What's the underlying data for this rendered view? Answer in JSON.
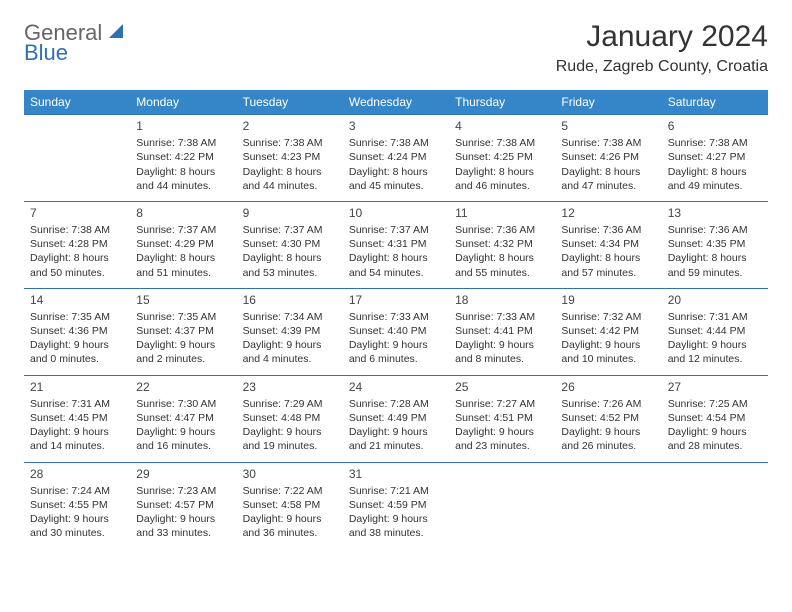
{
  "brand": {
    "part1": "General",
    "part2": "Blue"
  },
  "title": "January 2024",
  "location": "Rude, Zagreb County, Croatia",
  "colors": {
    "header_bg": "#3586c8",
    "header_text": "#ffffff",
    "rule": "#2f6fb3",
    "text": "#333333",
    "background": "#ffffff"
  },
  "typography": {
    "title_fontsize": 30,
    "location_fontsize": 16,
    "weekday_fontsize": 12,
    "daynum_fontsize": 12,
    "cell_fontsize": 10.5
  },
  "weekdays": [
    "Sunday",
    "Monday",
    "Tuesday",
    "Wednesday",
    "Thursday",
    "Friday",
    "Saturday"
  ],
  "weeks": [
    [
      null,
      {
        "n": "1",
        "sr": "Sunrise: 7:38 AM",
        "ss": "Sunset: 4:22 PM",
        "dl": "Daylight: 8 hours and 44 minutes."
      },
      {
        "n": "2",
        "sr": "Sunrise: 7:38 AM",
        "ss": "Sunset: 4:23 PM",
        "dl": "Daylight: 8 hours and 44 minutes."
      },
      {
        "n": "3",
        "sr": "Sunrise: 7:38 AM",
        "ss": "Sunset: 4:24 PM",
        "dl": "Daylight: 8 hours and 45 minutes."
      },
      {
        "n": "4",
        "sr": "Sunrise: 7:38 AM",
        "ss": "Sunset: 4:25 PM",
        "dl": "Daylight: 8 hours and 46 minutes."
      },
      {
        "n": "5",
        "sr": "Sunrise: 7:38 AM",
        "ss": "Sunset: 4:26 PM",
        "dl": "Daylight: 8 hours and 47 minutes."
      },
      {
        "n": "6",
        "sr": "Sunrise: 7:38 AM",
        "ss": "Sunset: 4:27 PM",
        "dl": "Daylight: 8 hours and 49 minutes."
      }
    ],
    [
      {
        "n": "7",
        "sr": "Sunrise: 7:38 AM",
        "ss": "Sunset: 4:28 PM",
        "dl": "Daylight: 8 hours and 50 minutes."
      },
      {
        "n": "8",
        "sr": "Sunrise: 7:37 AM",
        "ss": "Sunset: 4:29 PM",
        "dl": "Daylight: 8 hours and 51 minutes."
      },
      {
        "n": "9",
        "sr": "Sunrise: 7:37 AM",
        "ss": "Sunset: 4:30 PM",
        "dl": "Daylight: 8 hours and 53 minutes."
      },
      {
        "n": "10",
        "sr": "Sunrise: 7:37 AM",
        "ss": "Sunset: 4:31 PM",
        "dl": "Daylight: 8 hours and 54 minutes."
      },
      {
        "n": "11",
        "sr": "Sunrise: 7:36 AM",
        "ss": "Sunset: 4:32 PM",
        "dl": "Daylight: 8 hours and 55 minutes."
      },
      {
        "n": "12",
        "sr": "Sunrise: 7:36 AM",
        "ss": "Sunset: 4:34 PM",
        "dl": "Daylight: 8 hours and 57 minutes."
      },
      {
        "n": "13",
        "sr": "Sunrise: 7:36 AM",
        "ss": "Sunset: 4:35 PM",
        "dl": "Daylight: 8 hours and 59 minutes."
      }
    ],
    [
      {
        "n": "14",
        "sr": "Sunrise: 7:35 AM",
        "ss": "Sunset: 4:36 PM",
        "dl": "Daylight: 9 hours and 0 minutes."
      },
      {
        "n": "15",
        "sr": "Sunrise: 7:35 AM",
        "ss": "Sunset: 4:37 PM",
        "dl": "Daylight: 9 hours and 2 minutes."
      },
      {
        "n": "16",
        "sr": "Sunrise: 7:34 AM",
        "ss": "Sunset: 4:39 PM",
        "dl": "Daylight: 9 hours and 4 minutes."
      },
      {
        "n": "17",
        "sr": "Sunrise: 7:33 AM",
        "ss": "Sunset: 4:40 PM",
        "dl": "Daylight: 9 hours and 6 minutes."
      },
      {
        "n": "18",
        "sr": "Sunrise: 7:33 AM",
        "ss": "Sunset: 4:41 PM",
        "dl": "Daylight: 9 hours and 8 minutes."
      },
      {
        "n": "19",
        "sr": "Sunrise: 7:32 AM",
        "ss": "Sunset: 4:42 PM",
        "dl": "Daylight: 9 hours and 10 minutes."
      },
      {
        "n": "20",
        "sr": "Sunrise: 7:31 AM",
        "ss": "Sunset: 4:44 PM",
        "dl": "Daylight: 9 hours and 12 minutes."
      }
    ],
    [
      {
        "n": "21",
        "sr": "Sunrise: 7:31 AM",
        "ss": "Sunset: 4:45 PM",
        "dl": "Daylight: 9 hours and 14 minutes."
      },
      {
        "n": "22",
        "sr": "Sunrise: 7:30 AM",
        "ss": "Sunset: 4:47 PM",
        "dl": "Daylight: 9 hours and 16 minutes."
      },
      {
        "n": "23",
        "sr": "Sunrise: 7:29 AM",
        "ss": "Sunset: 4:48 PM",
        "dl": "Daylight: 9 hours and 19 minutes."
      },
      {
        "n": "24",
        "sr": "Sunrise: 7:28 AM",
        "ss": "Sunset: 4:49 PM",
        "dl": "Daylight: 9 hours and 21 minutes."
      },
      {
        "n": "25",
        "sr": "Sunrise: 7:27 AM",
        "ss": "Sunset: 4:51 PM",
        "dl": "Daylight: 9 hours and 23 minutes."
      },
      {
        "n": "26",
        "sr": "Sunrise: 7:26 AM",
        "ss": "Sunset: 4:52 PM",
        "dl": "Daylight: 9 hours and 26 minutes."
      },
      {
        "n": "27",
        "sr": "Sunrise: 7:25 AM",
        "ss": "Sunset: 4:54 PM",
        "dl": "Daylight: 9 hours and 28 minutes."
      }
    ],
    [
      {
        "n": "28",
        "sr": "Sunrise: 7:24 AM",
        "ss": "Sunset: 4:55 PM",
        "dl": "Daylight: 9 hours and 30 minutes."
      },
      {
        "n": "29",
        "sr": "Sunrise: 7:23 AM",
        "ss": "Sunset: 4:57 PM",
        "dl": "Daylight: 9 hours and 33 minutes."
      },
      {
        "n": "30",
        "sr": "Sunrise: 7:22 AM",
        "ss": "Sunset: 4:58 PM",
        "dl": "Daylight: 9 hours and 36 minutes."
      },
      {
        "n": "31",
        "sr": "Sunrise: 7:21 AM",
        "ss": "Sunset: 4:59 PM",
        "dl": "Daylight: 9 hours and 38 minutes."
      },
      null,
      null,
      null
    ]
  ]
}
